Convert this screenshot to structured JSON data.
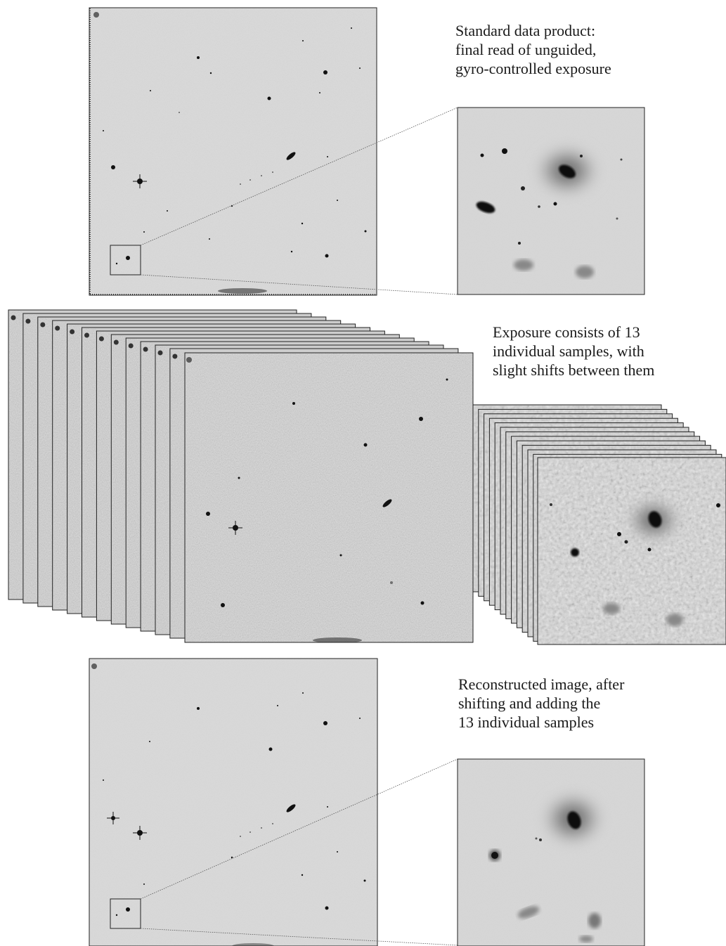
{
  "captions": {
    "top": {
      "line1": "Standard data product:",
      "line2": "final read of unguided,",
      "line3": "gyro-controlled exposure"
    },
    "middle": {
      "line1": "Exposure consists of 13",
      "line2": "individual samples, with",
      "line3": "slight shifts between them"
    },
    "bottom": {
      "line1": "Reconstructed image, after",
      "line2": "shifting and adding the",
      "line3": "13 individual samples"
    }
  },
  "colors": {
    "background": "#ffffff",
    "sky": "#d8d8d8",
    "noisy_sky": "#cfcfcf",
    "source": "#111111",
    "frame_border": "#222222",
    "zoom_line": "#555555"
  },
  "sample_count": 13
}
